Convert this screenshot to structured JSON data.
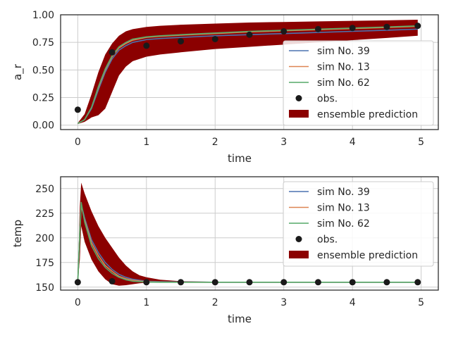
{
  "colors": {
    "band": "#8b0000",
    "sim_39": "#4c72b0",
    "sim_13": "#dd8452",
    "sim_62": "#55a868",
    "obs": "#1a1a1a"
  },
  "chart_data": [
    {
      "type": "line",
      "xlabel": "time",
      "ylabel": "a_r",
      "xlim": [
        -0.25,
        5.25
      ],
      "ylim": [
        -0.04,
        1.0
      ],
      "xticks": [
        0,
        1,
        2,
        3,
        4,
        5
      ],
      "yticks": [
        0.0,
        0.25,
        0.5,
        0.75,
        1.0
      ],
      "ytick_labels": [
        "0.00",
        "0.25",
        "0.50",
        "0.75",
        "1.00"
      ],
      "grid": true,
      "legend_position": "right",
      "legend": [
        "sim No. 39",
        "sim No. 13",
        "sim No. 62",
        "obs.",
        "ensemble prediction"
      ],
      "band": {
        "name": "ensemble prediction",
        "x": [
          0,
          0.1,
          0.2,
          0.3,
          0.4,
          0.5,
          0.6,
          0.7,
          0.8,
          1.0,
          1.2,
          1.5,
          2.0,
          2.5,
          3.0,
          3.5,
          4.0,
          4.5,
          4.95
        ],
        "lower": [
          0.01,
          0.03,
          0.07,
          0.09,
          0.15,
          0.3,
          0.45,
          0.53,
          0.58,
          0.62,
          0.64,
          0.66,
          0.69,
          0.71,
          0.73,
          0.75,
          0.77,
          0.79,
          0.81
        ],
        "upper": [
          0.02,
          0.1,
          0.28,
          0.48,
          0.64,
          0.74,
          0.81,
          0.85,
          0.87,
          0.89,
          0.9,
          0.91,
          0.92,
          0.93,
          0.935,
          0.94,
          0.945,
          0.95,
          0.955
        ]
      },
      "series": [
        {
          "name": "sim No. 39",
          "x": [
            0,
            0.1,
            0.2,
            0.3,
            0.4,
            0.5,
            0.6,
            0.7,
            0.8,
            1.0,
            1.2,
            1.5,
            2.0,
            2.5,
            3.0,
            3.5,
            4.0,
            4.5,
            4.95
          ],
          "y": [
            0.015,
            0.05,
            0.15,
            0.32,
            0.48,
            0.6,
            0.68,
            0.72,
            0.75,
            0.775,
            0.785,
            0.795,
            0.81,
            0.82,
            0.83,
            0.84,
            0.85,
            0.86,
            0.87
          ]
        },
        {
          "name": "sim No. 13",
          "x": [
            0,
            0.1,
            0.2,
            0.3,
            0.4,
            0.5,
            0.6,
            0.7,
            0.8,
            1.0,
            1.2,
            1.5,
            2.0,
            2.5,
            3.0,
            3.5,
            4.0,
            4.5,
            4.95
          ],
          "y": [
            0.015,
            0.05,
            0.16,
            0.34,
            0.5,
            0.62,
            0.7,
            0.74,
            0.77,
            0.795,
            0.805,
            0.815,
            0.83,
            0.845,
            0.855,
            0.865,
            0.875,
            0.885,
            0.895
          ]
        },
        {
          "name": "sim No. 62",
          "x": [
            0,
            0.1,
            0.2,
            0.3,
            0.4,
            0.5,
            0.6,
            0.7,
            0.8,
            1.0,
            1.2,
            1.5,
            2.0,
            2.5,
            3.0,
            3.5,
            4.0,
            4.5,
            4.95
          ],
          "y": [
            0.015,
            0.05,
            0.16,
            0.35,
            0.51,
            0.63,
            0.71,
            0.75,
            0.78,
            0.8,
            0.81,
            0.82,
            0.835,
            0.85,
            0.86,
            0.87,
            0.88,
            0.89,
            0.9
          ]
        }
      ],
      "obs": {
        "name": "obs.",
        "x": [
          0,
          0.5,
          1.0,
          1.5,
          2.0,
          2.5,
          3.0,
          3.5,
          4.0,
          4.5,
          4.95
        ],
        "y": [
          0.14,
          0.66,
          0.72,
          0.76,
          0.78,
          0.82,
          0.85,
          0.87,
          0.88,
          0.89,
          0.9
        ]
      }
    },
    {
      "type": "line",
      "xlabel": "time",
      "ylabel": "temp",
      "xlim": [
        -0.25,
        5.25
      ],
      "ylim": [
        147,
        262
      ],
      "xticks": [
        0,
        1,
        2,
        3,
        4,
        5
      ],
      "yticks": [
        150,
        175,
        200,
        225,
        250
      ],
      "ytick_labels": [
        "150",
        "175",
        "200",
        "225",
        "250"
      ],
      "grid": true,
      "legend_position": "right",
      "legend": [
        "sim No. 39",
        "sim No. 13",
        "sim No. 62",
        "obs.",
        "ensemble prediction"
      ],
      "band": {
        "name": "ensemble prediction",
        "x": [
          0,
          0.03,
          0.05,
          0.1,
          0.2,
          0.3,
          0.4,
          0.5,
          0.6,
          0.7,
          0.8,
          0.9,
          1.0,
          1.2,
          1.5,
          2.0,
          3.0,
          4.0,
          4.95
        ],
        "lower": [
          155,
          178,
          212,
          196,
          178,
          166,
          158,
          153,
          151.5,
          152,
          153,
          154,
          154.5,
          155,
          155,
          154.8,
          154.5,
          154.5,
          154.5
        ],
        "upper": [
          157,
          232,
          256,
          245,
          227,
          212,
          200,
          190,
          180,
          172,
          166,
          162,
          160,
          157.5,
          156,
          155.5,
          155.3,
          155.2,
          155.2
        ]
      },
      "series": [
        {
          "name": "sim No. 39",
          "x": [
            0,
            0.03,
            0.05,
            0.1,
            0.2,
            0.3,
            0.4,
            0.5,
            0.6,
            0.7,
            0.8,
            1.0,
            1.2,
            1.5,
            2.0,
            3.0,
            4.0,
            4.95
          ],
          "y": [
            155,
            205,
            234,
            220,
            198,
            185,
            175,
            168,
            163,
            160,
            158,
            156,
            155.5,
            155.2,
            155,
            155,
            155,
            155
          ]
        },
        {
          "name": "sim No. 13",
          "x": [
            0,
            0.03,
            0.05,
            0.1,
            0.2,
            0.3,
            0.4,
            0.5,
            0.6,
            0.7,
            0.8,
            1.0,
            1.2,
            1.5,
            2.0,
            3.0,
            4.0,
            4.95
          ],
          "y": [
            155,
            204,
            233,
            218,
            195,
            182,
            172,
            166,
            161,
            158.5,
            157,
            155.5,
            155.2,
            155,
            155,
            155,
            155,
            155
          ]
        },
        {
          "name": "sim No. 62",
          "x": [
            0,
            0.03,
            0.05,
            0.1,
            0.2,
            0.3,
            0.4,
            0.5,
            0.6,
            0.7,
            0.8,
            1.0,
            1.2,
            1.5,
            2.0,
            3.0,
            4.0,
            4.95
          ],
          "y": [
            155,
            206,
            236,
            216,
            192,
            179,
            170,
            164,
            160,
            157.5,
            156,
            155.2,
            155,
            155,
            155,
            155,
            155,
            155
          ]
        }
      ],
      "obs": {
        "name": "obs.",
        "x": [
          0,
          0.5,
          1.0,
          1.5,
          2.0,
          2.5,
          3.0,
          3.5,
          4.0,
          4.5,
          4.95
        ],
        "y": [
          155,
          156,
          155,
          155,
          155,
          155,
          155,
          155,
          155,
          155,
          155
        ]
      }
    }
  ]
}
